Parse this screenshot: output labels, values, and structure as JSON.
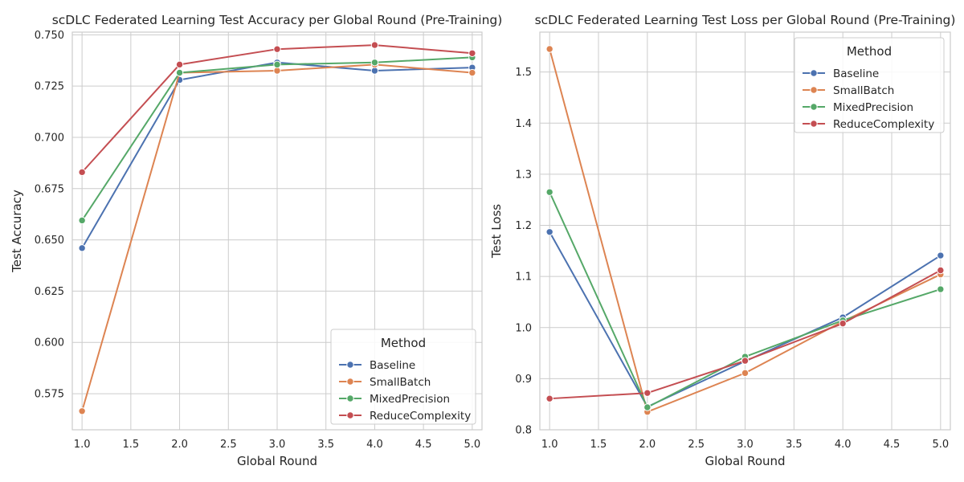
{
  "chart_data": [
    {
      "type": "line",
      "title": "scDLC Federated Learning Test Accuracy per Global Round (Pre-Training)",
      "xlabel": "Global Round",
      "ylabel": "Test Accuracy",
      "x": [
        1.0,
        2.0,
        3.0,
        4.0,
        5.0
      ],
      "xlim": [
        0.9,
        5.1
      ],
      "ylim": [
        0.5574,
        0.7513
      ],
      "xticks": [
        "1.0",
        "1.5",
        "2.0",
        "2.5",
        "3.0",
        "3.5",
        "4.0",
        "4.5",
        "5.0"
      ],
      "yticks": [
        "0.575",
        "0.600",
        "0.625",
        "0.650",
        "0.675",
        "0.700",
        "0.725",
        "0.750"
      ],
      "grid": true,
      "legend": {
        "title": "Method",
        "placement": "lower-right"
      },
      "series": [
        {
          "name": "Baseline",
          "color": "#4c72b0",
          "values": [
            0.646,
            0.728,
            0.7365,
            0.7325,
            0.734
          ]
        },
        {
          "name": "SmallBatch",
          "color": "#dd8452",
          "values": [
            0.5665,
            0.7315,
            0.7325,
            0.7355,
            0.7315
          ]
        },
        {
          "name": "MixedPrecision",
          "color": "#55a868",
          "values": [
            0.6595,
            0.7315,
            0.7355,
            0.7365,
            0.739
          ]
        },
        {
          "name": "ReduceComplexity",
          "color": "#c44e52",
          "values": [
            0.683,
            0.7355,
            0.743,
            0.745,
            0.741
          ]
        }
      ]
    },
    {
      "type": "line",
      "title": "scDLC Federated Learning Test Loss per Global Round (Pre-Training)",
      "xlabel": "Global Round",
      "ylabel": "Test Loss",
      "x": [
        1.0,
        2.0,
        3.0,
        4.0,
        5.0
      ],
      "xlim": [
        0.9,
        5.1
      ],
      "ylim": [
        0.8,
        1.578
      ],
      "xticks": [
        "1.0",
        "1.5",
        "2.0",
        "2.5",
        "3.0",
        "3.5",
        "4.0",
        "4.5",
        "5.0"
      ],
      "yticks": [
        "0.8",
        "0.9",
        "1.0",
        "1.1",
        "1.2",
        "1.3",
        "1.4",
        "1.5"
      ],
      "grid": true,
      "legend": {
        "title": "Method",
        "placement": "upper-right"
      },
      "series": [
        {
          "name": "Baseline",
          "color": "#4c72b0",
          "values": [
            1.187,
            0.845,
            0.934,
            1.02,
            1.141
          ]
        },
        {
          "name": "SmallBatch",
          "color": "#dd8452",
          "values": [
            1.545,
            0.835,
            0.911,
            1.012,
            1.104
          ]
        },
        {
          "name": "MixedPrecision",
          "color": "#55a868",
          "values": [
            1.265,
            0.844,
            0.943,
            1.014,
            1.075
          ]
        },
        {
          "name": "ReduceComplexity",
          "color": "#c44e52",
          "values": [
            0.861,
            0.872,
            0.935,
            1.008,
            1.112
          ]
        }
      ]
    }
  ]
}
